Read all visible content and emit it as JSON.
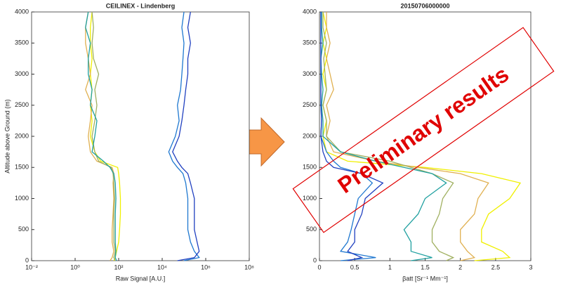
{
  "chart_data": [
    {
      "type": "line",
      "title": "CEILINEX - Lindenberg",
      "x_label": "Raw Signal [A.U.]",
      "y_label": "Altitude above Ground (m)",
      "xscale": "log",
      "xlim": [
        0.01,
        100000000
      ],
      "xticks": [
        {
          "value": 0.01,
          "label": "10⁻²"
        },
        {
          "value": 1,
          "label": "10⁰"
        },
        {
          "value": 100,
          "label": "10²"
        },
        {
          "value": 10000,
          "label": "10⁴"
        },
        {
          "value": 1000000,
          "label": "10⁶"
        },
        {
          "value": 100000000,
          "label": "10⁸"
        }
      ],
      "ylim": [
        0,
        4000
      ],
      "yticks": [
        0,
        500,
        1000,
        1500,
        2000,
        2500,
        3000,
        3500,
        4000
      ],
      "y": [
        0,
        50,
        150,
        300,
        500,
        750,
        1000,
        1250,
        1400,
        1500,
        1600,
        1750,
        2000,
        2250,
        2500,
        2750,
        3000,
        3250,
        3500,
        3750,
        4000
      ],
      "series": [
        {
          "color": "#f0f000",
          "values": [
            60,
            70,
            80,
            100,
            110,
            120,
            120,
            110,
            100,
            90,
            15,
            8,
            5,
            6,
            5,
            6,
            5,
            6,
            5,
            5,
            6
          ]
        },
        {
          "color": "#e0b050",
          "values": [
            40,
            50,
            60,
            50,
            50,
            55,
            60,
            55,
            60,
            50,
            10,
            5,
            4,
            5,
            6,
            3,
            5,
            4,
            3,
            3,
            4
          ]
        },
        {
          "color": "#a0b060",
          "values": [
            70,
            60,
            70,
            60,
            60,
            60,
            65,
            60,
            55,
            45,
            12,
            8,
            6,
            8,
            10,
            8,
            12,
            7,
            6,
            7,
            6
          ]
        },
        {
          "color": "#20a0a0",
          "values": [
            80,
            70,
            75,
            70,
            70,
            70,
            75,
            70,
            60,
            40,
            20,
            6,
            8,
            10,
            5,
            6,
            4,
            4,
            5,
            3,
            4
          ]
        },
        {
          "color": "#1f78d0",
          "values": [
            100000,
            500000,
            300000,
            200000,
            150000,
            150000,
            150000,
            120000,
            90000,
            50000,
            30000,
            20000,
            40000,
            60000,
            50000,
            70000,
            80000,
            90000,
            100000,
            80000,
            100000
          ]
        },
        {
          "color": "#2040c0",
          "values": [
            50000,
            300000,
            500000,
            400000,
            300000,
            300000,
            300000,
            200000,
            150000,
            80000,
            50000,
            30000,
            60000,
            80000,
            100000,
            120000,
            150000,
            150000,
            200000,
            150000,
            200000
          ]
        }
      ]
    },
    {
      "type": "line",
      "title": "20150706000000",
      "x_label": "βatt [Sr⁻¹ Mm⁻¹]",
      "annotation": "Preliminary results",
      "xscale": "linear",
      "xlim": [
        0,
        3
      ],
      "xticks": [
        0,
        0.5,
        1,
        1.5,
        2,
        2.5,
        3
      ],
      "ylim": [
        0,
        4000
      ],
      "yticks": [
        0,
        500,
        1000,
        1500,
        2000,
        2500,
        3000,
        3500,
        4000
      ],
      "y": [
        0,
        50,
        150,
        300,
        500,
        750,
        1000,
        1250,
        1400,
        1500,
        1600,
        1750,
        2000,
        2250,
        2500,
        2750,
        3000,
        3250,
        3500,
        3750,
        4000
      ],
      "series": [
        {
          "color": "#f0f000",
          "values": [
            2.2,
            2.7,
            2.6,
            2.3,
            2.3,
            2.4,
            2.7,
            2.85,
            2.3,
            1.5,
            0.4,
            0.1,
            0.05,
            0.1,
            0.05,
            0.1,
            0.05,
            0.1,
            0.05,
            0.1,
            0.05
          ]
        },
        {
          "color": "#e0b050",
          "values": [
            2.0,
            2.2,
            2.1,
            2.0,
            2.0,
            2.2,
            2.25,
            2.4,
            2.0,
            1.4,
            0.8,
            0.2,
            0.1,
            0.15,
            0.1,
            0.2,
            0.15,
            0.1,
            0.15,
            0.1,
            0.1
          ]
        },
        {
          "color": "#a0b060",
          "values": [
            1.8,
            1.9,
            1.7,
            1.6,
            1.6,
            1.7,
            1.75,
            1.9,
            1.6,
            1.3,
            1.0,
            0.3,
            0.1,
            0.1,
            0.05,
            0.1,
            0.08,
            0.06,
            0.1,
            0.05,
            0.05
          ]
        },
        {
          "color": "#20a0a0",
          "values": [
            1.3,
            1.6,
            1.3,
            1.3,
            1.2,
            1.4,
            1.5,
            1.8,
            1.6,
            1.2,
            0.8,
            0.3,
            0.05,
            0.05,
            0.03,
            0.05,
            0.03,
            0.02,
            0.05,
            0.03,
            0.03
          ]
        },
        {
          "color": "#1f78d0",
          "values": [
            0.3,
            0.8,
            0.3,
            0.4,
            0.45,
            0.5,
            0.55,
            0.75,
            0.6,
            0.3,
            0.2,
            0.1,
            0.02,
            0.03,
            0.02,
            0.02,
            0.02,
            0.02,
            0.02,
            0.02,
            0.02
          ]
        },
        {
          "color": "#2040c0",
          "values": [
            0.4,
            0.6,
            0.4,
            0.5,
            0.5,
            0.6,
            0.65,
            0.9,
            0.6,
            0.2,
            0.1,
            0.05,
            0.02,
            0.03,
            0.02,
            0.02,
            0.02,
            0.02,
            0.02,
            0.02,
            0.02
          ]
        }
      ]
    }
  ]
}
